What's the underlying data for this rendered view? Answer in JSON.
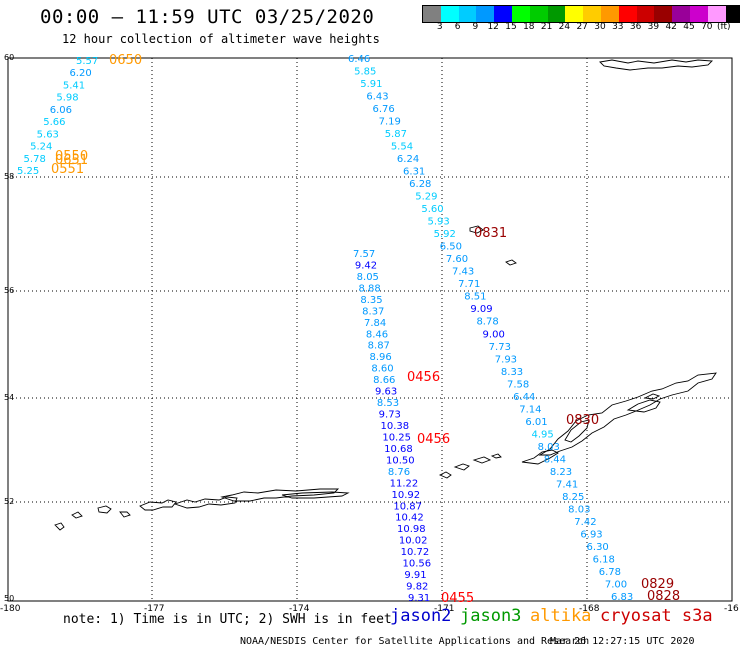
{
  "header": {
    "title": "00:00 – 11:59 UTC 03/25/2020",
    "subtitle": "12 hour collection of altimeter wave heights"
  },
  "colorbar": {
    "colors": [
      "#808080",
      "#00ffff",
      "#00ccff",
      "#0099ff",
      "#0000ff",
      "#00ff00",
      "#00cc00",
      "#009900",
      "#ffff00",
      "#ffcc00",
      "#ff9900",
      "#ff0000",
      "#cc0000",
      "#990000",
      "#990099",
      "#cc00cc",
      "#ff99ff",
      "#000000"
    ],
    "labels": [
      "3",
      "6",
      "9",
      "12",
      "15",
      "18",
      "21",
      "24",
      "27",
      "30",
      "33",
      "36",
      "39",
      "42",
      "45",
      "70"
    ],
    "unit": "(ft)"
  },
  "axes": {
    "lat_labels": [
      "60",
      "58",
      "56",
      "54",
      "52",
      "50"
    ],
    "lon_labels": [
      "-180",
      "-177",
      "-174",
      "-171",
      "-168",
      "-16"
    ]
  },
  "tracks": {
    "track_a": [
      "5.57",
      "6.20",
      "5.41",
      "5.98",
      "6.06",
      "5.66",
      "5.63",
      "5.24",
      "5.78",
      "5.25"
    ],
    "track_b": [
      "6.46",
      "5.85",
      "5.91",
      "6.43",
      "6.76",
      "7.19",
      "5.87",
      "5.54",
      "6.24",
      "6.31",
      "6.28",
      "5.29",
      "5.60",
      "5.93",
      "5.92",
      "6.50",
      "7.60",
      "7.43",
      "7.71",
      "8.51",
      "9.09",
      "8.78",
      "9.00",
      "7.73",
      "7.93",
      "8.33",
      "7.58",
      "6.44",
      "7.14",
      "6.01",
      "4.95",
      "8.03",
      "8.44",
      "8.23",
      "7.41",
      "8.25",
      "8.03",
      "7.42",
      "6.93",
      "6.30",
      "6.18",
      "6.78",
      "7.00",
      "6.83"
    ],
    "track_c": [
      "7.57",
      "9.42",
      "8.05",
      "8.88",
      "8.35",
      "8.37",
      "7.84",
      "8.46",
      "8.87",
      "8.96",
      "8.60",
      "8.66",
      "9.63",
      "8.53",
      "9.73",
      "10.38",
      "10.25",
      "10.68",
      "10.50",
      "8.76",
      "11.22",
      "10.92",
      "10.87",
      "10.42",
      "10.98",
      "10.02",
      "10.72",
      "10.56",
      "9.91",
      "9.82",
      "9.31"
    ]
  },
  "time_labels": [
    {
      "text": "0650",
      "color": "#ff9900"
    },
    {
      "text": "0550",
      "color": "#ff9900"
    },
    {
      "text": "0651",
      "color": "#ff9900"
    },
    {
      "text": "0551",
      "color": "#ff9900"
    },
    {
      "text": "0831",
      "color": "#990000"
    },
    {
      "text": "0456",
      "color": "#ff0000"
    },
    {
      "text": "0456",
      "color": "#ff0000"
    },
    {
      "text": "0830",
      "color": "#990000"
    },
    {
      "text": "0455",
      "color": "#ff0000"
    },
    {
      "text": "0829",
      "color": "#990000"
    },
    {
      "text": "0828",
      "color": "#990000"
    }
  ],
  "footer": {
    "note": "note: 1) Time is in UTC; 2) SWH is in feet",
    "satellites": [
      {
        "name": "jason2",
        "color": "#0000cc"
      },
      {
        "name": "jason3",
        "color": "#009900"
      },
      {
        "name": "altika",
        "color": "#ff9900"
      },
      {
        "name": "cryosat s3a",
        "color": "#cc0000"
      }
    ],
    "credit": "NOAA/NESDIS Center for Satellite Applications and Research",
    "stamp": "Mar 26 12:27:15 UTC 2020"
  }
}
